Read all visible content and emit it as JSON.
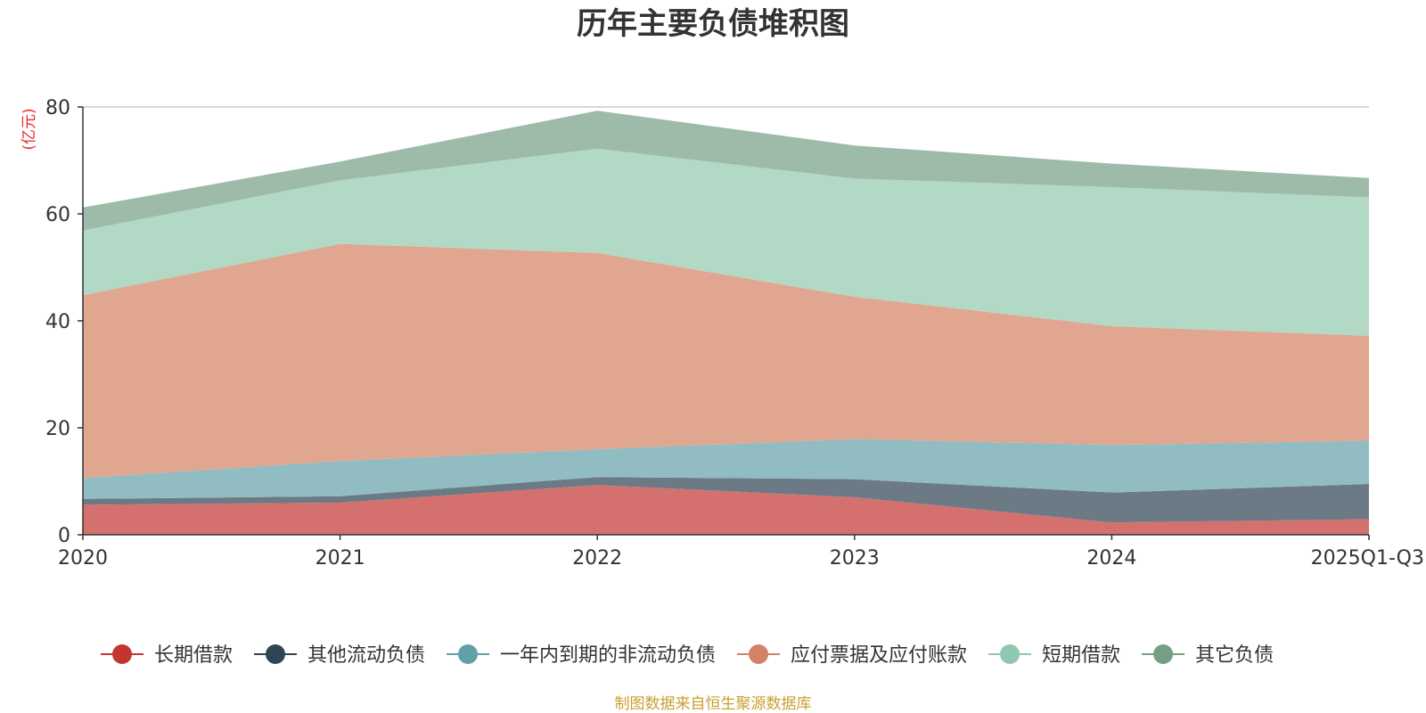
{
  "chart_data": {
    "type": "area",
    "stacked": true,
    "title": "历年主要负债堆积图",
    "ylabel": "(亿元)",
    "xlabel": "",
    "ylim": [
      0,
      80
    ],
    "yticks": [
      0,
      20,
      40,
      60,
      80
    ],
    "grid": true,
    "legend_position": "bottom",
    "categories": [
      "2020",
      "2021",
      "2022",
      "2023",
      "2024",
      "2025Q1-Q3"
    ],
    "series": [
      {
        "name": "长期借款",
        "color": "#c23531",
        "fill": "#d4706d",
        "values": [
          5.6,
          6.0,
          9.3,
          7.0,
          2.3,
          2.9
        ]
      },
      {
        "name": "其他流动负债",
        "color": "#2f4554",
        "fill": "#6c7a86",
        "values": [
          1.1,
          1.2,
          1.5,
          3.4,
          5.6,
          6.6
        ]
      },
      {
        "name": "一年内到期的非流动负债",
        "color": "#61a0a8",
        "fill": "#91bcc2",
        "values": [
          3.9,
          6.6,
          5.2,
          7.5,
          8.9,
          8.1
        ]
      },
      {
        "name": "应付票据及应付账款",
        "color": "#d48265",
        "fill": "#e0a690",
        "values": [
          34.2,
          40.6,
          36.7,
          26.6,
          22.2,
          19.6
        ]
      },
      {
        "name": "短期借款",
        "color": "#91c7ae",
        "fill": "#b2d8c6",
        "values": [
          12.1,
          11.9,
          19.5,
          22.1,
          26.0,
          25.9
        ]
      },
      {
        "name": "其它负债",
        "color": "#749f83",
        "fill": "#9dbba8",
        "values": [
          4.3,
          3.5,
          7.1,
          6.2,
          4.4,
          3.6
        ]
      }
    ]
  },
  "source_note": "制图数据来自恒生聚源数据库"
}
